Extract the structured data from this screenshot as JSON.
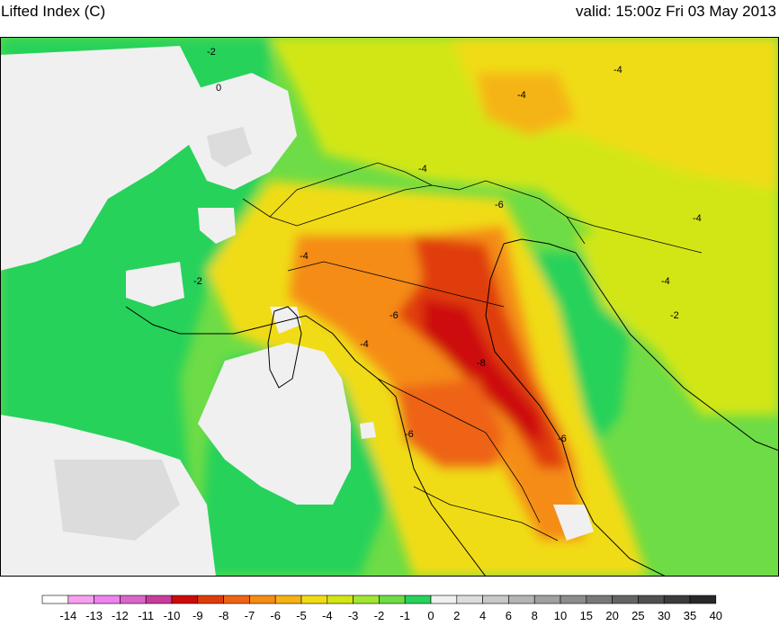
{
  "header": {
    "title": "Lifted Index (C)",
    "valid": "valid: 15:00z Fri 03 May 2013"
  },
  "contour_labels": {
    "neg2": "-2",
    "neg4": "-4",
    "neg6": "-6",
    "neg8": "-8",
    "zero": "0"
  },
  "legend": {
    "levels": [
      {
        "label": "-14",
        "color": "#ffffff"
      },
      {
        "label": "-13",
        "color": "#f7a0f0"
      },
      {
        "label": "-12",
        "color": "#ee82ee"
      },
      {
        "label": "-11",
        "color": "#d966c8"
      },
      {
        "label": "-10",
        "color": "#c83c9c"
      },
      {
        "label": "-9",
        "color": "#cd0a0a"
      },
      {
        "label": "-8",
        "color": "#e03c0a"
      },
      {
        "label": "-7",
        "color": "#ee6414"
      },
      {
        "label": "-6",
        "color": "#f58c14"
      },
      {
        "label": "-5",
        "color": "#f5b414"
      },
      {
        "label": "-4",
        "color": "#f0dc14"
      },
      {
        "label": "-3",
        "color": "#d2e614"
      },
      {
        "label": "-2",
        "color": "#a0e632"
      },
      {
        "label": "-1",
        "color": "#6edc46"
      },
      {
        "label": "0",
        "color": "#28d25a"
      },
      {
        "label": "2",
        "color": "#f0f0f0"
      },
      {
        "label": "4",
        "color": "#dcdcdc"
      },
      {
        "label": "6",
        "color": "#c8c8c8"
      },
      {
        "label": "8",
        "color": "#b4b4b4"
      },
      {
        "label": "10",
        "color": "#a0a0a0"
      },
      {
        "label": "15",
        "color": "#8c8c8c"
      },
      {
        "label": "20",
        "color": "#787878"
      },
      {
        "label": "25",
        "color": "#646464"
      },
      {
        "label": "30",
        "color": "#505050"
      },
      {
        "label": "35",
        "color": "#3c3c3c"
      },
      {
        "label": "40",
        "color": "#282828"
      }
    ]
  }
}
